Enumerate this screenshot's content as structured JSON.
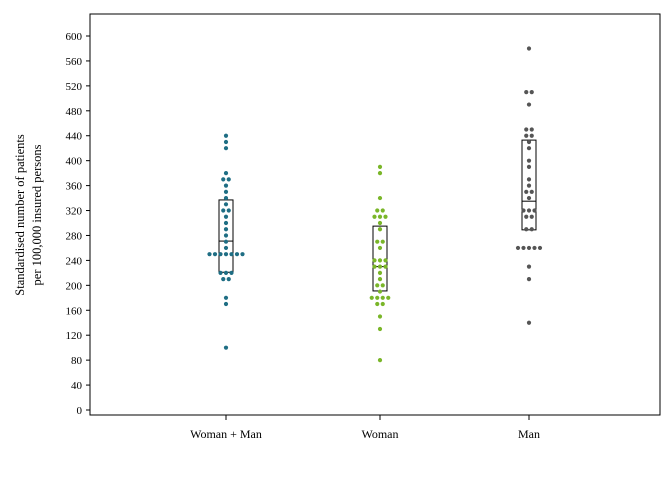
{
  "chart_data": {
    "type": "scatter",
    "ylabel_line1": "Standardised number of patients",
    "ylabel_line2": "per 100,000 insured persons",
    "ylim": [
      0,
      640
    ],
    "yticks": [
      0,
      40,
      80,
      120,
      160,
      200,
      240,
      280,
      320,
      360,
      400,
      440,
      480,
      520,
      560,
      600
    ],
    "grid": false,
    "categories": [
      "Woman + Man",
      "Woman",
      "Man"
    ],
    "series": [
      {
        "category": "Woman + Man",
        "color": "#1f6e84",
        "box": {
          "q1": 221,
          "median": 271,
          "q3": 337
        },
        "points": [
          440,
          430,
          420,
          380,
          370,
          370,
          360,
          350,
          340,
          330,
          320,
          320,
          310,
          300,
          290,
          280,
          270,
          260,
          250,
          250,
          250,
          250,
          250,
          250,
          250,
          220,
          220,
          220,
          210,
          210,
          180,
          170,
          100
        ]
      },
      {
        "category": "Woman",
        "color": "#7ab629",
        "box": {
          "q1": 191,
          "median": 230,
          "q3": 295
        },
        "points": [
          390,
          380,
          340,
          320,
          320,
          310,
          310,
          310,
          300,
          290,
          270,
          270,
          260,
          240,
          240,
          240,
          230,
          230,
          230,
          220,
          210,
          200,
          200,
          190,
          180,
          180,
          180,
          180,
          170,
          170,
          150,
          130,
          80
        ]
      },
      {
        "category": "Man",
        "color": "#555555",
        "box": {
          "q1": 289,
          "median": 335,
          "q3": 433
        },
        "points": [
          580,
          510,
          510,
          490,
          450,
          450,
          440,
          440,
          430,
          420,
          400,
          390,
          370,
          360,
          350,
          350,
          340,
          320,
          320,
          320,
          310,
          310,
          290,
          290,
          260,
          260,
          260,
          260,
          260,
          230,
          210,
          140
        ]
      }
    ]
  }
}
